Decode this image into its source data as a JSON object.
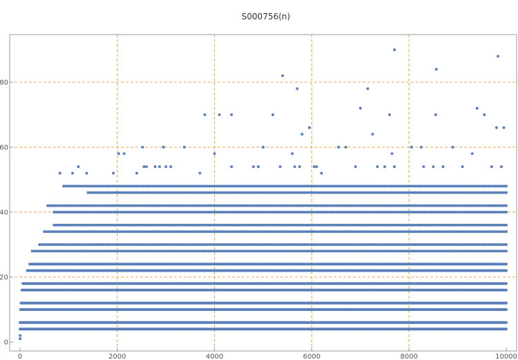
{
  "chart_data": {
    "type": "scatter",
    "title": "S000756(n)",
    "xlabel": "",
    "ylabel": "",
    "xlim": [
      0,
      10000
    ],
    "ylim": [
      0,
      90
    ],
    "x_ticks": [
      0,
      2000,
      4000,
      6000,
      8000,
      10000
    ],
    "y_ticks": [
      0,
      20,
      40,
      60,
      80
    ],
    "x_tick_labels": [
      "0",
      "2000",
      "4000",
      "6000",
      "8000",
      "10000"
    ],
    "y_tick_labels": [
      "0",
      "20",
      "40",
      "60",
      "80"
    ],
    "grid": {
      "x": [
        2000,
        4000,
        6000,
        8000
      ],
      "y": [
        20,
        40,
        60,
        80
      ],
      "style": "dashed"
    },
    "legend": "none",
    "colors": {
      "points": "#5b7fb8",
      "grid": "#e8a04a",
      "axis": "#999999",
      "text": "#555555"
    },
    "series": [
      {
        "bands": [
          {
            "y": 4,
            "x_range": [
              1,
              10000
            ]
          },
          {
            "y": 6,
            "x_range": [
              1,
              10000
            ]
          },
          {
            "y": 10,
            "x_range": [
              10,
              10000
            ]
          },
          {
            "y": 12,
            "x_range": [
              20,
              10000
            ]
          },
          {
            "y": 16,
            "x_range": [
              40,
              10000
            ]
          },
          {
            "y": 18,
            "x_range": [
              60,
              10000
            ]
          },
          {
            "y": 22,
            "x_range": [
              150,
              10000
            ]
          },
          {
            "y": 24,
            "x_range": [
              200,
              10000
            ]
          },
          {
            "y": 28,
            "x_range": [
              250,
              10000
            ]
          },
          {
            "y": 30,
            "x_range": [
              400,
              10000
            ]
          },
          {
            "y": 34,
            "x_range": [
              500,
              10000
            ]
          },
          {
            "y": 36,
            "x_range": [
              700,
              10000
            ]
          },
          {
            "y": 40,
            "x_range": [
              700,
              10000
            ]
          },
          {
            "y": 42,
            "x_range": [
              600,
              10000
            ]
          },
          {
            "y": 46,
            "x_range": [
              1400,
              10000
            ]
          },
          {
            "y": 48,
            "x_range": [
              900,
              10000
            ]
          }
        ],
        "points": [
          {
            "x": 2,
            "y": 1
          },
          {
            "x": 3,
            "y": 2
          },
          {
            "x": 570,
            "y": 42
          },
          {
            "x": 820,
            "y": 52
          },
          {
            "x": 900,
            "y": 48
          },
          {
            "x": 1080,
            "y": 52
          },
          {
            "x": 1200,
            "y": 54
          },
          {
            "x": 1370,
            "y": 52
          },
          {
            "x": 1920,
            "y": 52
          },
          {
            "x": 2030,
            "y": 58
          },
          {
            "x": 2140,
            "y": 58
          },
          {
            "x": 2400,
            "y": 52
          },
          {
            "x": 2520,
            "y": 60
          },
          {
            "x": 2550,
            "y": 54
          },
          {
            "x": 2600,
            "y": 54
          },
          {
            "x": 2780,
            "y": 54
          },
          {
            "x": 2870,
            "y": 54
          },
          {
            "x": 2950,
            "y": 60
          },
          {
            "x": 3000,
            "y": 54
          },
          {
            "x": 3100,
            "y": 54
          },
          {
            "x": 3380,
            "y": 60
          },
          {
            "x": 3700,
            "y": 52
          },
          {
            "x": 3800,
            "y": 70
          },
          {
            "x": 4000,
            "y": 58
          },
          {
            "x": 4100,
            "y": 70
          },
          {
            "x": 4350,
            "y": 70
          },
          {
            "x": 4350,
            "y": 54
          },
          {
            "x": 4800,
            "y": 54
          },
          {
            "x": 4900,
            "y": 54
          },
          {
            "x": 5000,
            "y": 60
          },
          {
            "x": 5200,
            "y": 70
          },
          {
            "x": 5400,
            "y": 82
          },
          {
            "x": 5350,
            "y": 54
          },
          {
            "x": 5600,
            "y": 58
          },
          {
            "x": 5700,
            "y": 78
          },
          {
            "x": 5650,
            "y": 54
          },
          {
            "x": 5750,
            "y": 54
          },
          {
            "x": 5800,
            "y": 64
          },
          {
            "x": 5950,
            "y": 66
          },
          {
            "x": 6050,
            "y": 54
          },
          {
            "x": 6100,
            "y": 54
          },
          {
            "x": 6200,
            "y": 52
          },
          {
            "x": 6550,
            "y": 60
          },
          {
            "x": 6700,
            "y": 60
          },
          {
            "x": 6900,
            "y": 54
          },
          {
            "x": 7000,
            "y": 72
          },
          {
            "x": 7150,
            "y": 78
          },
          {
            "x": 7250,
            "y": 64
          },
          {
            "x": 7350,
            "y": 54
          },
          {
            "x": 7500,
            "y": 54
          },
          {
            "x": 7600,
            "y": 70
          },
          {
            "x": 7650,
            "y": 58
          },
          {
            "x": 7700,
            "y": 90
          },
          {
            "x": 7700,
            "y": 54
          },
          {
            "x": 8050,
            "y": 60
          },
          {
            "x": 8250,
            "y": 60
          },
          {
            "x": 8300,
            "y": 54
          },
          {
            "x": 8500,
            "y": 54
          },
          {
            "x": 8550,
            "y": 70
          },
          {
            "x": 8560,
            "y": 84
          },
          {
            "x": 8700,
            "y": 54
          },
          {
            "x": 8900,
            "y": 60
          },
          {
            "x": 9100,
            "y": 54
          },
          {
            "x": 9300,
            "y": 58
          },
          {
            "x": 9400,
            "y": 72
          },
          {
            "x": 9550,
            "y": 70
          },
          {
            "x": 9700,
            "y": 54
          },
          {
            "x": 9800,
            "y": 66
          },
          {
            "x": 9830,
            "y": 88
          },
          {
            "x": 9900,
            "y": 54
          },
          {
            "x": 9950,
            "y": 66
          }
        ]
      }
    ]
  }
}
